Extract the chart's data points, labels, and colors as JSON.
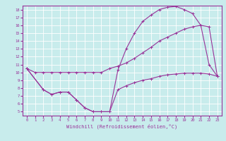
{
  "xlabel": "Windchill (Refroidissement éolien,°C)",
  "bg_color": "#c8ecec",
  "line_color": "#993399",
  "grid_color": "#ffffff",
  "xlim": [
    -0.5,
    23.5
  ],
  "ylim": [
    4.5,
    18.5
  ],
  "yticks": [
    5,
    6,
    7,
    8,
    9,
    10,
    11,
    12,
    13,
    14,
    15,
    16,
    17,
    18
  ],
  "xticks": [
    0,
    1,
    2,
    3,
    4,
    5,
    6,
    7,
    8,
    9,
    10,
    11,
    12,
    13,
    14,
    15,
    16,
    17,
    18,
    19,
    20,
    21,
    22,
    23
  ],
  "curve1_x": [
    0,
    1,
    2,
    3,
    4,
    5,
    6,
    7,
    8,
    9,
    10,
    11,
    12,
    13,
    14,
    15,
    16,
    17,
    18,
    19,
    20,
    21,
    22,
    23
  ],
  "curve1_y": [
    10.5,
    10.0,
    10.0,
    10.0,
    10.0,
    10.0,
    10.0,
    10.0,
    10.0,
    10.0,
    10.5,
    10.8,
    11.2,
    11.8,
    12.5,
    13.2,
    14.0,
    14.5,
    15.0,
    15.5,
    15.8,
    16.0,
    15.8,
    9.5
  ],
  "curve2_x": [
    0,
    2,
    3,
    4,
    5,
    6,
    7,
    8,
    9,
    10,
    11,
    12,
    13,
    14,
    15,
    16,
    17,
    18,
    19,
    20,
    21,
    22,
    23
  ],
  "curve2_y": [
    10.5,
    7.8,
    7.2,
    7.5,
    7.5,
    6.5,
    5.5,
    5.0,
    5.0,
    5.0,
    10.3,
    13.0,
    15.0,
    16.5,
    17.3,
    18.0,
    18.3,
    18.4,
    18.0,
    17.5,
    16.0,
    11.0,
    9.5
  ],
  "curve3_x": [
    0,
    2,
    3,
    4,
    5,
    6,
    7,
    8,
    9,
    10,
    11,
    12,
    13,
    14,
    15,
    16,
    17,
    18,
    19,
    20,
    21,
    22,
    23
  ],
  "curve3_y": [
    10.5,
    7.8,
    7.2,
    7.5,
    7.5,
    6.5,
    5.5,
    5.0,
    5.0,
    5.0,
    7.8,
    8.3,
    8.7,
    9.0,
    9.2,
    9.5,
    9.7,
    9.8,
    9.9,
    9.9,
    9.9,
    9.8,
    9.5
  ]
}
